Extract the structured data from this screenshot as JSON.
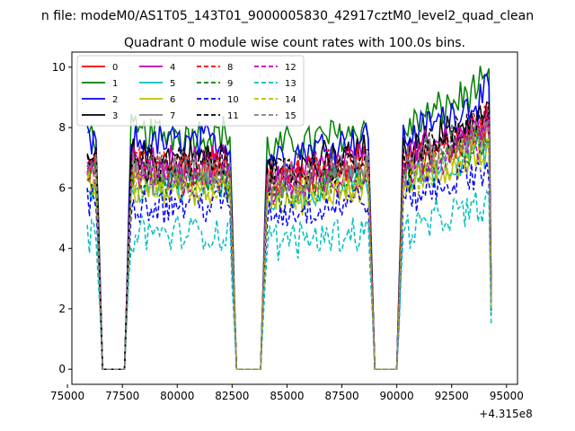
{
  "figure": {
    "suptitle": "n file: modeM0/AS1T05_143T01_9000005830_42917cztM0_level2_quad_clean",
    "offset_label": "+4.315e8"
  },
  "chart_data": {
    "type": "line",
    "title": "Quadrant 0 module wise count rates with 100.0s bins.",
    "xlabel": "",
    "ylabel": "",
    "xlim": [
      75200,
      95500
    ],
    "ylim": [
      -0.5,
      10.5
    ],
    "x_ticks": [
      75000,
      77500,
      80000,
      82500,
      85000,
      87500,
      90000,
      92500,
      95000
    ],
    "x_tick_labels": [
      "75000",
      "77500",
      "80000",
      "82500",
      "85000",
      "87500",
      "90000",
      "92500",
      "95000"
    ],
    "y_ticks": [
      0,
      2,
      4,
      6,
      8,
      10
    ],
    "y_tick_labels": [
      "0",
      "2",
      "4",
      "6",
      "8",
      "10"
    ],
    "grid": false,
    "legend_position": "top-left",
    "legend_columns": 4,
    "x_range_plotted": [
      75900,
      94300
    ],
    "gaps": [
      [
        76600,
        77600
      ],
      [
        82700,
        83800
      ],
      [
        89000,
        90000
      ]
    ],
    "series": [
      {
        "name": "0",
        "color": "#ff0000",
        "dash": "solid",
        "level": 6.6
      },
      {
        "name": "1",
        "color": "#008000",
        "dash": "solid",
        "level": 7.8
      },
      {
        "name": "2",
        "color": "#0000ff",
        "dash": "solid",
        "level": 7.5
      },
      {
        "name": "3",
        "color": "#000000",
        "dash": "solid",
        "level": 7.0
      },
      {
        "name": "4",
        "color": "#bf00bf",
        "dash": "solid",
        "level": 6.8
      },
      {
        "name": "5",
        "color": "#00bfbf",
        "dash": "solid",
        "level": 6.1
      },
      {
        "name": "6",
        "color": "#bfbf00",
        "dash": "solid",
        "level": 6.0
      },
      {
        "name": "7",
        "color": "#808080",
        "dash": "solid",
        "level": 6.5
      },
      {
        "name": "8",
        "color": "#ff0000",
        "dash": "dashed",
        "level": 6.7
      },
      {
        "name": "9",
        "color": "#008000",
        "dash": "dashed",
        "level": 6.2
      },
      {
        "name": "10",
        "color": "#0000ff",
        "dash": "dashed",
        "level": 5.5
      },
      {
        "name": "11",
        "color": "#000000",
        "dash": "dashed",
        "level": 6.8
      },
      {
        "name": "12",
        "color": "#bf00bf",
        "dash": "dashed",
        "level": 6.4
      },
      {
        "name": "13",
        "color": "#00bfbf",
        "dash": "dashed",
        "level": 4.5
      },
      {
        "name": "14",
        "color": "#bfbf00",
        "dash": "dashed",
        "level": 6.1
      },
      {
        "name": "15",
        "color": "#808080",
        "dash": "dashed",
        "level": 6.6
      }
    ]
  }
}
